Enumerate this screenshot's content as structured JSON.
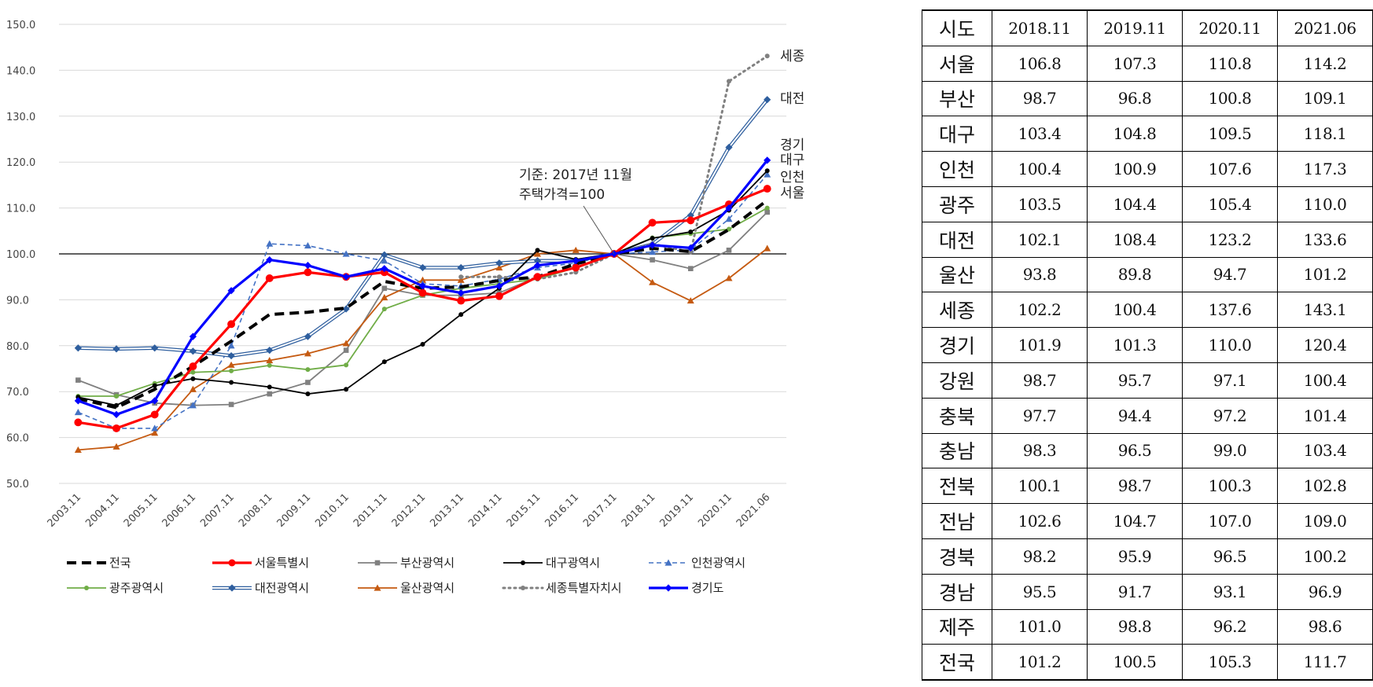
{
  "chart_data": {
    "type": "line",
    "ylim": [
      50,
      150
    ],
    "yticks": [
      "50.0",
      "60.0",
      "70.0",
      "80.0",
      "90.0",
      "100.0",
      "110.0",
      "120.0",
      "130.0",
      "140.0",
      "150.0"
    ],
    "x": [
      "2003.11",
      "2004.11",
      "2005.11",
      "2006.11",
      "2007.11",
      "2008.11",
      "2009.11",
      "2010.11",
      "2011.11",
      "2012.11",
      "2013.11",
      "2014.11",
      "2015.11",
      "2016.11",
      "2017.11",
      "2018.11",
      "2019.11",
      "2020.11",
      "2021.06"
    ],
    "reference_line": 100,
    "annotation": [
      "기준: 2017년 11월",
      "주택가격=100"
    ],
    "end_labels": [
      "세종",
      "대전",
      "경기",
      "대구",
      "인천",
      "서울"
    ],
    "legend_position": "bottom",
    "series": [
      {
        "name": "전국",
        "color": "#000000",
        "style": "dash-thick",
        "marker": "none",
        "values": [
          68.5,
          66.5,
          70.5,
          75.5,
          81.0,
          86.8,
          87.3,
          88.2,
          94.0,
          92.5,
          92.8,
          94.2,
          95.0,
          97.8,
          100.0,
          101.2,
          100.5,
          105.3,
          111.7
        ]
      },
      {
        "name": "서울특별시",
        "color": "#ff0000",
        "style": "solid-thick",
        "marker": "circle",
        "values": [
          63.3,
          62.0,
          65.0,
          75.5,
          84.7,
          94.7,
          96.0,
          95.0,
          96.0,
          91.5,
          89.8,
          90.8,
          95.0,
          97.0,
          100.0,
          106.8,
          107.3,
          110.8,
          114.2
        ]
      },
      {
        "name": "부산광역시",
        "color": "#808080",
        "style": "solid",
        "marker": "square",
        "values": [
          72.5,
          69.3,
          67.5,
          67.0,
          67.2,
          69.5,
          72.0,
          79.0,
          92.5,
          91.0,
          91.0,
          91.5,
          95.0,
          97.0,
          100.0,
          98.7,
          96.8,
          100.8,
          109.1
        ]
      },
      {
        "name": "대구광역시",
        "color": "#000000",
        "style": "solid",
        "marker": "dot",
        "values": [
          68.8,
          67.0,
          71.3,
          72.8,
          72.0,
          71.0,
          69.5,
          70.5,
          76.5,
          80.3,
          86.8,
          92.5,
          100.8,
          98.8,
          100.0,
          103.4,
          104.8,
          109.5,
          118.1
        ]
      },
      {
        "name": "인천광역시",
        "color": "#4472c4",
        "style": "dash",
        "marker": "triangle",
        "values": [
          65.5,
          62.0,
          62.0,
          67.0,
          80.0,
          102.2,
          101.8,
          100.0,
          98.5,
          93.5,
          93.0,
          94.5,
          97.0,
          98.0,
          100.0,
          100.4,
          100.9,
          107.6,
          117.3
        ]
      },
      {
        "name": "광주광역시",
        "color": "#70ad47",
        "style": "solid",
        "marker": "dot",
        "values": [
          69.0,
          69.0,
          71.8,
          74.2,
          74.5,
          75.7,
          74.8,
          75.8,
          88.0,
          91.0,
          92.5,
          93.5,
          94.5,
          97.0,
          100.0,
          103.5,
          104.4,
          105.4,
          110.0
        ]
      },
      {
        "name": "대전광역시",
        "color": "#2e5e9e",
        "style": "double",
        "marker": "diamond",
        "values": [
          79.5,
          79.3,
          79.5,
          78.8,
          77.8,
          79.0,
          82.0,
          88.0,
          99.8,
          97.0,
          97.0,
          98.0,
          98.5,
          98.5,
          100.0,
          102.1,
          108.4,
          123.2,
          133.6
        ]
      },
      {
        "name": "울산광역시",
        "color": "#c55a11",
        "style": "solid",
        "marker": "triangle",
        "values": [
          57.3,
          58.0,
          61.0,
          70.5,
          75.8,
          76.8,
          78.3,
          80.5,
          90.5,
          94.3,
          94.3,
          97.0,
          100.0,
          100.8,
          100.0,
          93.8,
          89.8,
          94.7,
          101.2
        ]
      },
      {
        "name": "세종특별자치시",
        "color": "#808080",
        "style": "dot",
        "marker": "dot",
        "values": [
          null,
          null,
          null,
          null,
          null,
          null,
          null,
          null,
          null,
          null,
          95.0,
          95.0,
          94.5,
          96.0,
          100.0,
          102.2,
          100.4,
          137.6,
          143.1
        ]
      },
      {
        "name": "경기도",
        "color": "#0000ff",
        "style": "solid-thick",
        "marker": "diamond",
        "values": [
          68.0,
          65.0,
          68.0,
          82.0,
          92.0,
          98.7,
          97.5,
          95.0,
          96.8,
          93.0,
          91.5,
          93.0,
          97.5,
          98.5,
          100.0,
          101.9,
          101.3,
          110.0,
          120.4
        ]
      }
    ]
  },
  "table": {
    "headers": [
      "시도",
      "2018.11",
      "2019.11",
      "2020.11",
      "2021.06"
    ],
    "rows": [
      [
        "서울",
        "106.8",
        "107.3",
        "110.8",
        "114.2"
      ],
      [
        "부산",
        "98.7",
        "96.8",
        "100.8",
        "109.1"
      ],
      [
        "대구",
        "103.4",
        "104.8",
        "109.5",
        "118.1"
      ],
      [
        "인천",
        "100.4",
        "100.9",
        "107.6",
        "117.3"
      ],
      [
        "광주",
        "103.5",
        "104.4",
        "105.4",
        "110.0"
      ],
      [
        "대전",
        "102.1",
        "108.4",
        "123.2",
        "133.6"
      ],
      [
        "울산",
        "93.8",
        "89.8",
        "94.7",
        "101.2"
      ],
      [
        "세종",
        "102.2",
        "100.4",
        "137.6",
        "143.1"
      ],
      [
        "경기",
        "101.9",
        "101.3",
        "110.0",
        "120.4"
      ],
      [
        "강원",
        "98.7",
        "95.7",
        "97.1",
        "100.4"
      ],
      [
        "충북",
        "97.7",
        "94.4",
        "97.2",
        "101.4"
      ],
      [
        "충남",
        "98.3",
        "96.5",
        "99.0",
        "103.4"
      ],
      [
        "전북",
        "100.1",
        "98.7",
        "100.3",
        "102.8"
      ],
      [
        "전남",
        "102.6",
        "104.7",
        "107.0",
        "109.0"
      ],
      [
        "경북",
        "98.2",
        "95.9",
        "96.5",
        "100.2"
      ],
      [
        "경남",
        "95.5",
        "91.7",
        "93.1",
        "96.9"
      ],
      [
        "제주",
        "101.0",
        "98.8",
        "96.2",
        "98.6"
      ],
      [
        "전국",
        "101.2",
        "100.5",
        "105.3",
        "111.7"
      ]
    ]
  }
}
